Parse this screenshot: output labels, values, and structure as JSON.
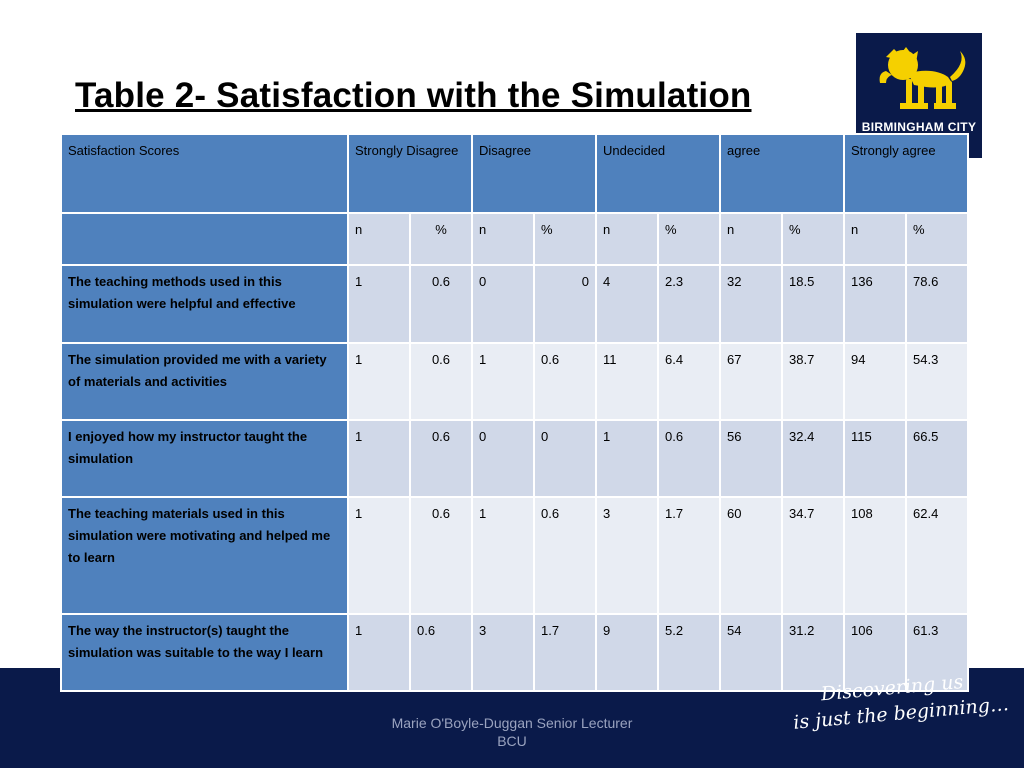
{
  "title": "Table 2- Satisfaction with the Simulation",
  "logo": {
    "text": "BIRMINGHAM CITY",
    "icon": "lion-icon",
    "color": "#f5d000"
  },
  "table": {
    "headers": [
      "Satisfaction  Scores",
      "Strongly Disagree",
      "Disagree",
      "Undecided",
      "agree",
      "Strongly agree"
    ],
    "subheaders": [
      "n",
      "%",
      "n",
      "%",
      "n",
      "%",
      "n",
      "%",
      "n",
      "%"
    ],
    "rows": [
      {
        "label": "The teaching methods used in this simulation were helpful and effective",
        "values": [
          "1",
          "0.6",
          "0",
          "0",
          "4",
          "2.3",
          "32",
          "18.5",
          "136",
          "78.6"
        ]
      },
      {
        "label": "The simulation provided me with a variety of materials and activities",
        "values": [
          "1",
          "0.6",
          "1",
          "0.6",
          "11",
          "6.4",
          "67",
          "38.7",
          "94",
          "54.3"
        ]
      },
      {
        "label": "I enjoyed how my instructor taught the simulation",
        "values": [
          "1",
          "0.6",
          "0",
          "0",
          "1",
          "0.6",
          "56",
          "32.4",
          "115",
          "66.5"
        ]
      },
      {
        "label": "The teaching materials used in this simulation were motivating and helped me to learn",
        "values": [
          "1",
          "0.6",
          "1",
          "0.6",
          "3",
          "1.7",
          "60",
          "34.7",
          "108",
          "62.4"
        ]
      },
      {
        "label": "The way the instructor(s) taught the simulation was suitable to the way I learn",
        "values": [
          "1",
          "0.6",
          "3",
          "1.7",
          "9",
          "5.2",
          "54",
          "31.2",
          "106",
          "61.3"
        ]
      }
    ]
  },
  "footer": {
    "credit_line1": "Marie O'Boyle-Duggan   Senior Lecturer",
    "credit_line2": "BCU",
    "tagline_line1": "Discovering us",
    "tagline_line2": "is just the beginning…"
  },
  "colors": {
    "header_blue": "#4f81bd",
    "row_dark": "#d0d8e8",
    "row_light": "#e9edf4",
    "navy": "#0a1a4a"
  }
}
